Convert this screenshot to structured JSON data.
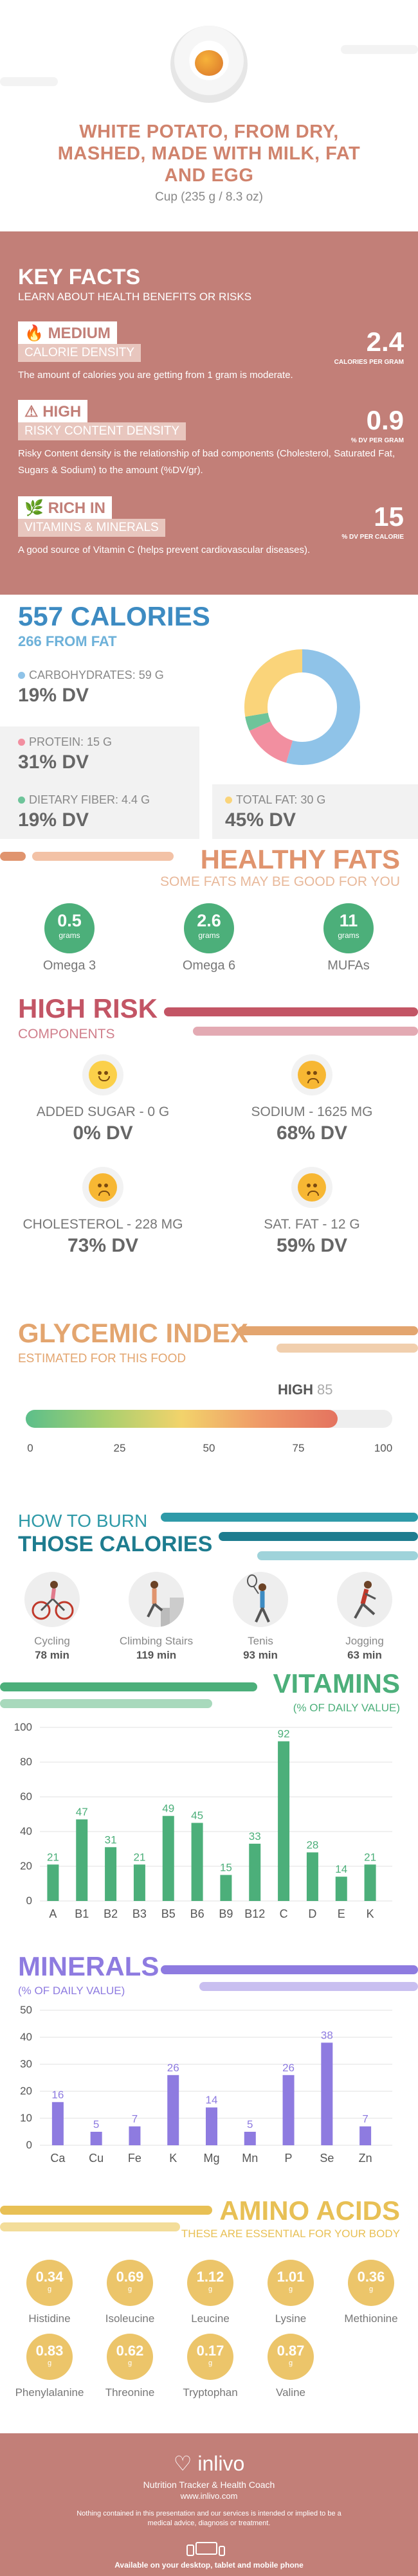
{
  "header": {
    "title": "WHITE POTATO, FROM DRY, MASHED, MADE WITH MILK, FAT AND EGG",
    "serving": "Cup (235 g / 8.3 oz)"
  },
  "key_facts": {
    "title": "KEY FACTS",
    "subtitle": "LEARN ABOUT HEALTH BENEFITS OR RISKS",
    "items": [
      {
        "level": "MEDIUM",
        "name": "CALORIE DENSITY",
        "value": "2.4",
        "unit": "CALORIES PER GRAM",
        "desc": "The amount of calories you are getting from 1 gram is moderate."
      },
      {
        "level": "HIGH",
        "name": "RISKY CONTENT DENSITY",
        "value": "0.9",
        "unit": "% DV PER GRAM",
        "desc": "Risky Content density is the relationship of bad components (Cholesterol, Saturated Fat, Sugars & Sodium) to the amount (%DV/gr)."
      },
      {
        "level": "RICH  IN",
        "name": "VITAMINS & MINERALS",
        "value": "15",
        "unit": "% DV PER CALORIE",
        "desc": "A good source of Vitamin C (helps prevent cardiovascular diseases)."
      }
    ]
  },
  "calories": {
    "title": "557 CALORIES",
    "subtitle": "266 FROM FAT",
    "carbs": {
      "label": "CARBOHYDRATES: 59 g",
      "dv": "19% DV",
      "color": "#8fc3e8"
    },
    "protein": {
      "label": "PROTEIN: 15 g",
      "dv": "31% DV",
      "color": "#f28fa0"
    },
    "fiber": {
      "label": "DIETARY FIBER: 4.4 g",
      "dv": "19% DV",
      "color": "#6ec49a"
    },
    "fat": {
      "label": "TOTAL FAT: 30 g",
      "dv": "45% DV",
      "color": "#fad47a"
    },
    "donut": [
      {
        "name": "carbs",
        "value": 59,
        "color": "#8fc3e8"
      },
      {
        "name": "protein",
        "value": 15,
        "color": "#f28fa0"
      },
      {
        "name": "fiber",
        "value": 4.4,
        "color": "#6ec49a"
      },
      {
        "name": "fat",
        "value": 30,
        "color": "#fad47a"
      }
    ]
  },
  "healthy_fats": {
    "title": "HEALTHY FATS",
    "subtitle": "SOME FATS MAY BE GOOD FOR YOU",
    "items": [
      {
        "value": "0.5",
        "unit": "grams",
        "name": "Omega 3"
      },
      {
        "value": "2.6",
        "unit": "grams",
        "name": "Omega 6"
      },
      {
        "value": "11",
        "unit": "grams",
        "name": "MUFAs"
      }
    ]
  },
  "high_risk": {
    "title": "HIGH RISK",
    "subtitle": "COMPONENTS",
    "items": [
      {
        "name": "ADDED SUGAR - 0 g",
        "dv": "0% DV",
        "face": "happy"
      },
      {
        "name": "SODIUM - 1625 mg",
        "dv": "68% DV",
        "face": "sad"
      },
      {
        "name": "CHOLESTEROL - 228 mg",
        "dv": "73% DV",
        "face": "sad"
      },
      {
        "name": "SAT. FAT - 12 g",
        "dv": "59% DV",
        "face": "sad"
      }
    ]
  },
  "glycemic": {
    "title": "GLYCEMIC INDEX",
    "subtitle": "ESTIMATED FOR THIS FOOD",
    "level": "HIGH",
    "value": "85",
    "value_num": 85,
    "ticks": [
      "0",
      "25",
      "50",
      "75",
      "100"
    ]
  },
  "burn": {
    "title_line1": "HOW TO BURN",
    "title_line2": "THOSE CALORIES",
    "activities": [
      {
        "name": "Cycling",
        "minutes": "78 min",
        "icon": "cyclist-icon"
      },
      {
        "name": "Climbing Stairs",
        "minutes": "119 min",
        "icon": "stairs-climber-icon"
      },
      {
        "name": "Tenis",
        "minutes": "93 min",
        "icon": "tennis-player-icon"
      },
      {
        "name": "Jogging",
        "minutes": "63 min",
        "icon": "jogger-icon"
      }
    ]
  },
  "vitamins": {
    "title": "VITAMINS",
    "subtitle": "(% OF DAILY VALUE)",
    "color": "#4caf7a",
    "chart_data": {
      "type": "bar",
      "categories": [
        "A",
        "B1",
        "B2",
        "B3",
        "B5",
        "B6",
        "B9",
        "B12",
        "C",
        "D",
        "E",
        "K"
      ],
      "values": [
        21,
        47,
        31,
        21,
        49,
        45,
        15,
        33,
        92,
        28,
        14,
        21
      ],
      "ylim": [
        0,
        100
      ],
      "yticks": [
        "0",
        "20",
        "40",
        "60",
        "80",
        "100"
      ]
    }
  },
  "minerals": {
    "title": "MINERALS",
    "subtitle": "(% OF DAILY VALUE)",
    "color": "#8e7be0",
    "chart_data": {
      "type": "bar",
      "categories": [
        "Ca",
        "Cu",
        "Fe",
        "K",
        "Mg",
        "Mn",
        "P",
        "Se",
        "Zn"
      ],
      "values": [
        16,
        5,
        7,
        26,
        14,
        5,
        26,
        38,
        7
      ],
      "ylim": [
        0,
        50
      ],
      "yticks": [
        "0",
        "10",
        "20",
        "30",
        "40",
        "50"
      ]
    }
  },
  "amino": {
    "title": "AMINO ACIDS",
    "subtitle": "THESE ARE ESSENTIAL FOR YOUR BODY",
    "unit": "g",
    "items": [
      {
        "value": "0.34",
        "name": "Histidine"
      },
      {
        "value": "0.69",
        "name": "Isoleucine"
      },
      {
        "value": "1.12",
        "name": "Leucine"
      },
      {
        "value": "1.01",
        "name": "Lysine"
      },
      {
        "value": "0.36",
        "name": "Methionine"
      },
      {
        "value": "0.83",
        "name": "Phenylalanine"
      },
      {
        "value": "0.62",
        "name": "Threonine"
      },
      {
        "value": "0.17",
        "name": "Tryptophan"
      },
      {
        "value": "0.87",
        "name": "Valine"
      }
    ]
  },
  "footer": {
    "logo": "inlivo",
    "tagline": "Nutrition Tracker & Health Coach",
    "website": "www.inlivo.com",
    "disclaimer": "Nothing contained in this presentation and our services is intended or implied to be a medical advice, diagnosis or treatment.",
    "available": "Available on your desktop, tablet and mobile phone"
  }
}
